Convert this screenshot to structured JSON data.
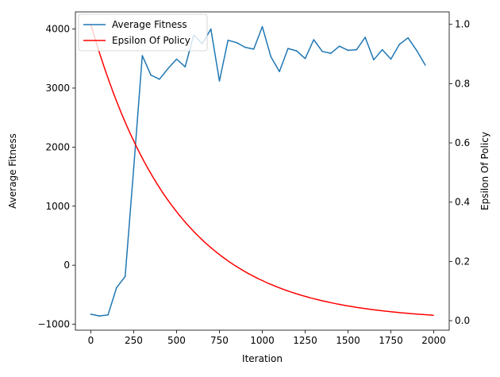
{
  "chart_data": {
    "type": "line",
    "title": "",
    "xlabel": "Iteration",
    "ylabel": "Average Fitness",
    "y2label": "Epsilon Of Policy",
    "xlim": [
      -90,
      2090
    ],
    "ylim": [
      -1100,
      4290
    ],
    "y2lim": [
      -0.032,
      1.042
    ],
    "x_ticks": [
      0,
      250,
      500,
      750,
      1000,
      1250,
      1500,
      1750,
      2000
    ],
    "y_ticks": [
      -1000,
      0,
      1000,
      2000,
      3000,
      4000
    ],
    "y2_ticks": [
      0.0,
      0.2,
      0.4,
      0.6,
      0.8,
      1.0
    ],
    "x_tick_labels": [
      "0",
      "250",
      "500",
      "750",
      "1000",
      "1250",
      "1500",
      "1750",
      "2000"
    ],
    "y_tick_labels": [
      "−1000",
      "0",
      "1000",
      "2000",
      "3000",
      "4000"
    ],
    "y2_tick_labels": [
      "0.0",
      "0.2",
      "0.4",
      "0.6",
      "0.8",
      "1.0"
    ],
    "legend_position": "top-left",
    "grid": false,
    "series": [
      {
        "name": "Average Fitness",
        "axis": "left",
        "color": "#1f77b4",
        "x": [
          0,
          50,
          100,
          150,
          200,
          250,
          300,
          350,
          400,
          450,
          500,
          550,
          600,
          650,
          700,
          750,
          800,
          850,
          900,
          950,
          1000,
          1050,
          1100,
          1150,
          1200,
          1250,
          1300,
          1350,
          1400,
          1450,
          1500,
          1550,
          1600,
          1650,
          1700,
          1750,
          1800,
          1850,
          1900,
          1950
        ],
        "y": [
          -830,
          -860,
          -840,
          -380,
          -190,
          1650,
          3550,
          3220,
          3150,
          3330,
          3490,
          3360,
          3900,
          3750,
          4000,
          3120,
          3810,
          3770,
          3690,
          3660,
          4040,
          3530,
          3280,
          3670,
          3630,
          3500,
          3820,
          3620,
          3590,
          3710,
          3640,
          3650,
          3860,
          3480,
          3650,
          3490,
          3740,
          3850,
          3640,
          3390
        ]
      },
      {
        "name": "Epsilon Of Policy",
        "axis": "right",
        "color": "#ff0000",
        "formula": "y = exp(-x / 500)",
        "x_range": [
          0,
          2000
        ],
        "samples": 201
      }
    ]
  }
}
